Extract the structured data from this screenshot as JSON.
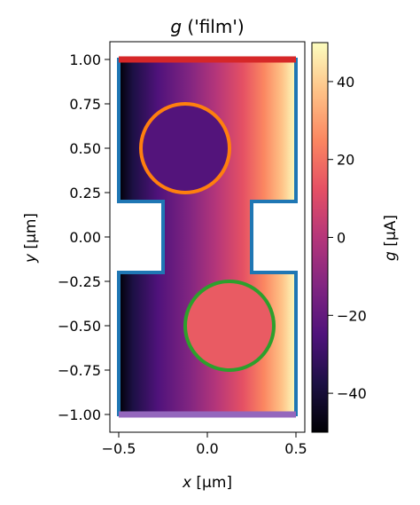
{
  "chart_data": {
    "type": "heatmap",
    "title_var": "g",
    "title_rest": " ('film')",
    "xlabel_var": "x",
    "xlabel_unit": " [μm]",
    "ylabel_var": "y",
    "ylabel_unit": " [μm]",
    "xlim": [
      -0.55,
      0.55
    ],
    "ylim": [
      -1.1,
      1.1
    ],
    "xticks": [
      -0.5,
      0.0,
      0.5
    ],
    "xtick_labels": [
      "−0.5",
      "0.0",
      "0.5"
    ],
    "yticks": [
      1.0,
      0.75,
      0.5,
      0.25,
      0.0,
      -0.25,
      -0.5,
      -0.75,
      -1.0
    ],
    "ytick_labels": [
      "1.00",
      "0.75",
      "0.50",
      "0.25",
      "0.00",
      "−0.25",
      "−0.50",
      "−0.75",
      "−1.00"
    ],
    "colorbar": {
      "label_var": "g",
      "label_unit": " [μA]",
      "range": [
        -50,
        50
      ],
      "ticks": [
        40,
        20,
        0,
        -20,
        -40
      ],
      "tick_labels": [
        "40",
        "20",
        "0",
        "−20",
        "−40"
      ],
      "colormap": "magma"
    },
    "film_outline": {
      "color": "#1f77b4",
      "points": [
        [
          -0.5,
          1.0
        ],
        [
          0.5,
          1.0
        ],
        [
          0.5,
          0.2
        ],
        [
          0.25,
          0.2
        ],
        [
          0.25,
          -0.2
        ],
        [
          0.5,
          -0.2
        ],
        [
          0.5,
          -1.0
        ],
        [
          -0.5,
          -1.0
        ],
        [
          -0.5,
          -0.2
        ],
        [
          -0.25,
          -0.2
        ],
        [
          -0.25,
          0.2
        ],
        [
          -0.5,
          0.2
        ]
      ]
    },
    "terminals": [
      {
        "side": "top",
        "y": 1.0,
        "x": [
          -0.5,
          0.5
        ],
        "color": "#d62728"
      },
      {
        "side": "bottom",
        "y": -1.0,
        "x": [
          -0.5,
          0.5
        ],
        "color": "#9467bd"
      }
    ],
    "holes": [
      {
        "cx": -0.125,
        "cy": 0.5,
        "r": 0.25,
        "edge_color": "#ff7f0e",
        "fill_value": -24
      },
      {
        "cx": 0.125,
        "cy": -0.5,
        "r": 0.25,
        "edge_color": "#2ca02c",
        "fill_value": 15
      }
    ]
  }
}
